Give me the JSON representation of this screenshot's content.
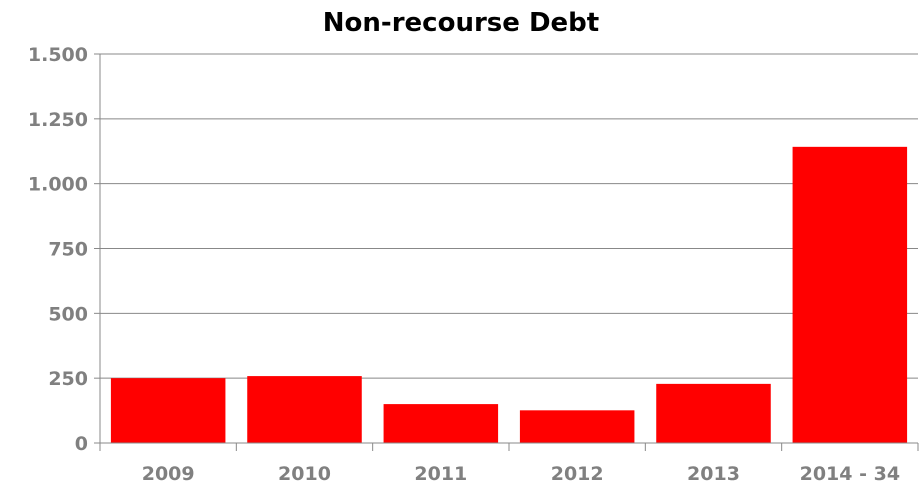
{
  "chart_data": {
    "type": "bar",
    "title": "Non-recourse Debt",
    "xlabel": "",
    "ylabel": "",
    "categories": [
      "2009",
      "2010",
      "2011",
      "2012",
      "2013",
      "2014 - 34"
    ],
    "values": [
      250,
      258,
      150,
      126,
      228,
      1142
    ],
    "ylim": [
      0,
      1500
    ],
    "yticks": [
      0,
      250,
      500,
      750,
      1000,
      1250,
      1500
    ],
    "ytick_labels": [
      "0",
      "250",
      "500",
      "750",
      "1.000",
      "1.250",
      "1.500"
    ],
    "grid": true,
    "legend": "none",
    "colors": {
      "bar": "#ff0000",
      "grid": "#888888",
      "axis": "#888888",
      "tick_label": "#808080",
      "title": "#000000"
    }
  }
}
